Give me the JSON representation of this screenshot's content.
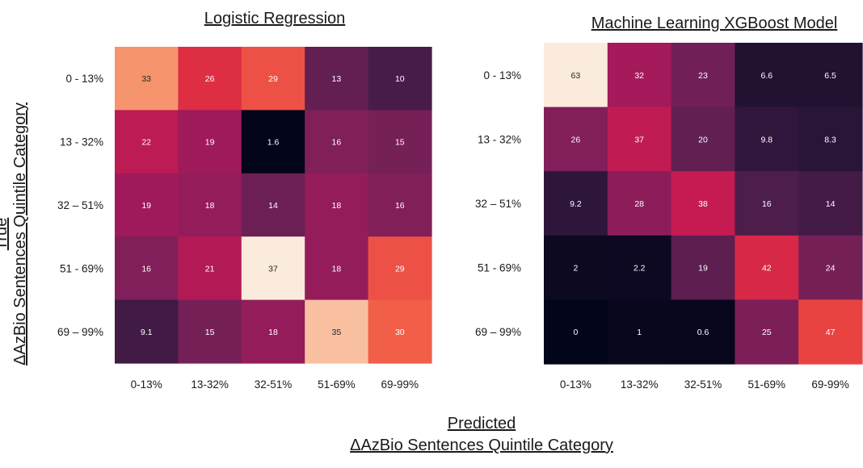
{
  "chart_data": [
    {
      "type": "heatmap",
      "title": "Logistic Regression",
      "row_labels": [
        "0 - 13%",
        "13 - 32%",
        "32 – 51%",
        "51 - 69%",
        "69 – 99%"
      ],
      "col_labels": [
        "0-13%",
        "13-32%",
        "32-51%",
        "51-69%",
        "69-99%"
      ],
      "values": [
        [
          33,
          26,
          29,
          13,
          10
        ],
        [
          22,
          19,
          1.6,
          16,
          15
        ],
        [
          19,
          18,
          14,
          18,
          16
        ],
        [
          16,
          21,
          37,
          18,
          29
        ],
        [
          9.1,
          15,
          18,
          35,
          30
        ]
      ],
      "color_range": [
        1.6,
        37
      ],
      "colormap": "rocket"
    },
    {
      "type": "heatmap",
      "title": "Machine Learning XGBoost Model",
      "row_labels": [
        "0 - 13%",
        "13 - 32%",
        "32 – 51%",
        "51 - 69%",
        "69 – 99%"
      ],
      "col_labels": [
        "0-13%",
        "13-32%",
        "32-51%",
        "51-69%",
        "69-99%"
      ],
      "values": [
        [
          63,
          32,
          23,
          6.6,
          6.5
        ],
        [
          26,
          37,
          20,
          9.8,
          8.3
        ],
        [
          9.2,
          28,
          38,
          16,
          14
        ],
        [
          2,
          2.2,
          19,
          42,
          24
        ],
        [
          0,
          1,
          0.6,
          25,
          47
        ]
      ],
      "color_range": [
        0,
        63
      ],
      "colormap": "rocket"
    }
  ],
  "y_axis_title": [
    "True",
    "ΔAzBio Sentences Quintile Category"
  ],
  "x_axis_title": [
    "Predicted",
    "ΔAzBio Sentences Quintile Category"
  ]
}
